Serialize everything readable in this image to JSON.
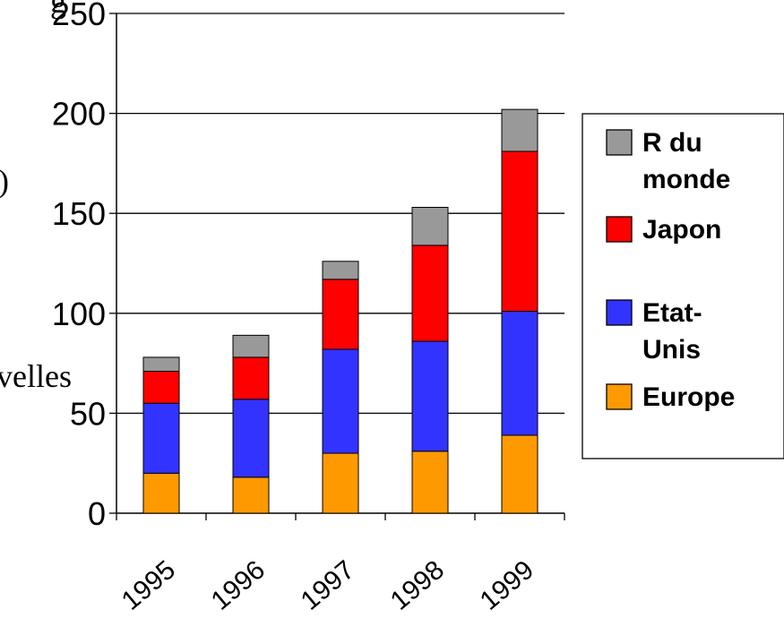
{
  "chart_data": {
    "type": "bar",
    "stacked": true,
    "categories": [
      "1995",
      "1996",
      "1997",
      "1998",
      "1999"
    ],
    "series": [
      {
        "name": "Europe",
        "color": "#FF9900",
        "values": [
          20,
          18,
          30,
          31,
          39
        ]
      },
      {
        "name": "Etat-Unis",
        "color": "#3333FF",
        "values": [
          35,
          39,
          52,
          55,
          62
        ]
      },
      {
        "name": "Japon",
        "color": "#FF0000",
        "values": [
          16,
          21,
          35,
          48,
          80
        ]
      },
      {
        "name": "R du monde",
        "color": "#999999",
        "values": [
          7,
          11,
          9,
          19,
          21
        ]
      }
    ],
    "ylim": [
      0,
      250
    ],
    "yticks": [
      "0",
      "50",
      "100",
      "150",
      "200",
      "250"
    ],
    "grid": true,
    "legend_position": "right",
    "legend_order": [
      "R du monde",
      "Japon",
      "Etat-Unis",
      "Europe"
    ]
  },
  "legend_lines": {
    "R du monde": [
      "R du",
      "monde"
    ],
    "Japon": [
      "Japon"
    ],
    "Etat-Unis": [
      "Etat-",
      "Unis"
    ],
    "Europe": [
      "Europe"
    ]
  },
  "cropped_ylabel_fragments": {
    "top": "g",
    "paren": ")",
    "word": "velles"
  }
}
